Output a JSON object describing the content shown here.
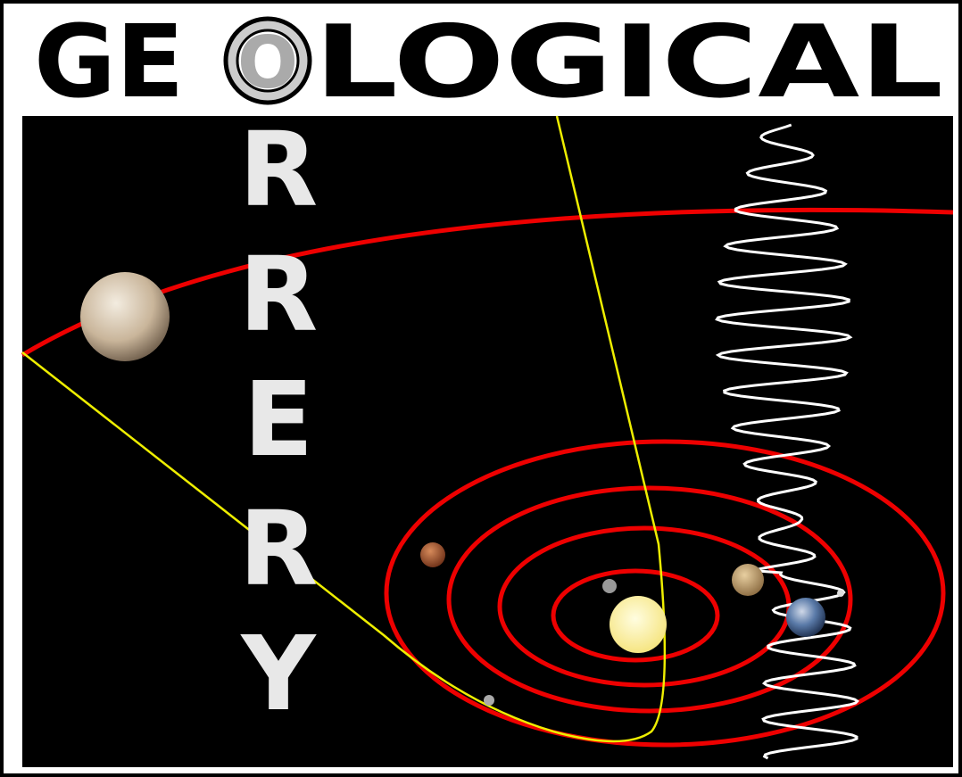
{
  "title": {
    "before": "GE",
    "ring_letter": "O",
    "after": "LOGICAL"
  },
  "vertical_letters": [
    "R",
    "R",
    "E",
    "R",
    "Y"
  ]
}
